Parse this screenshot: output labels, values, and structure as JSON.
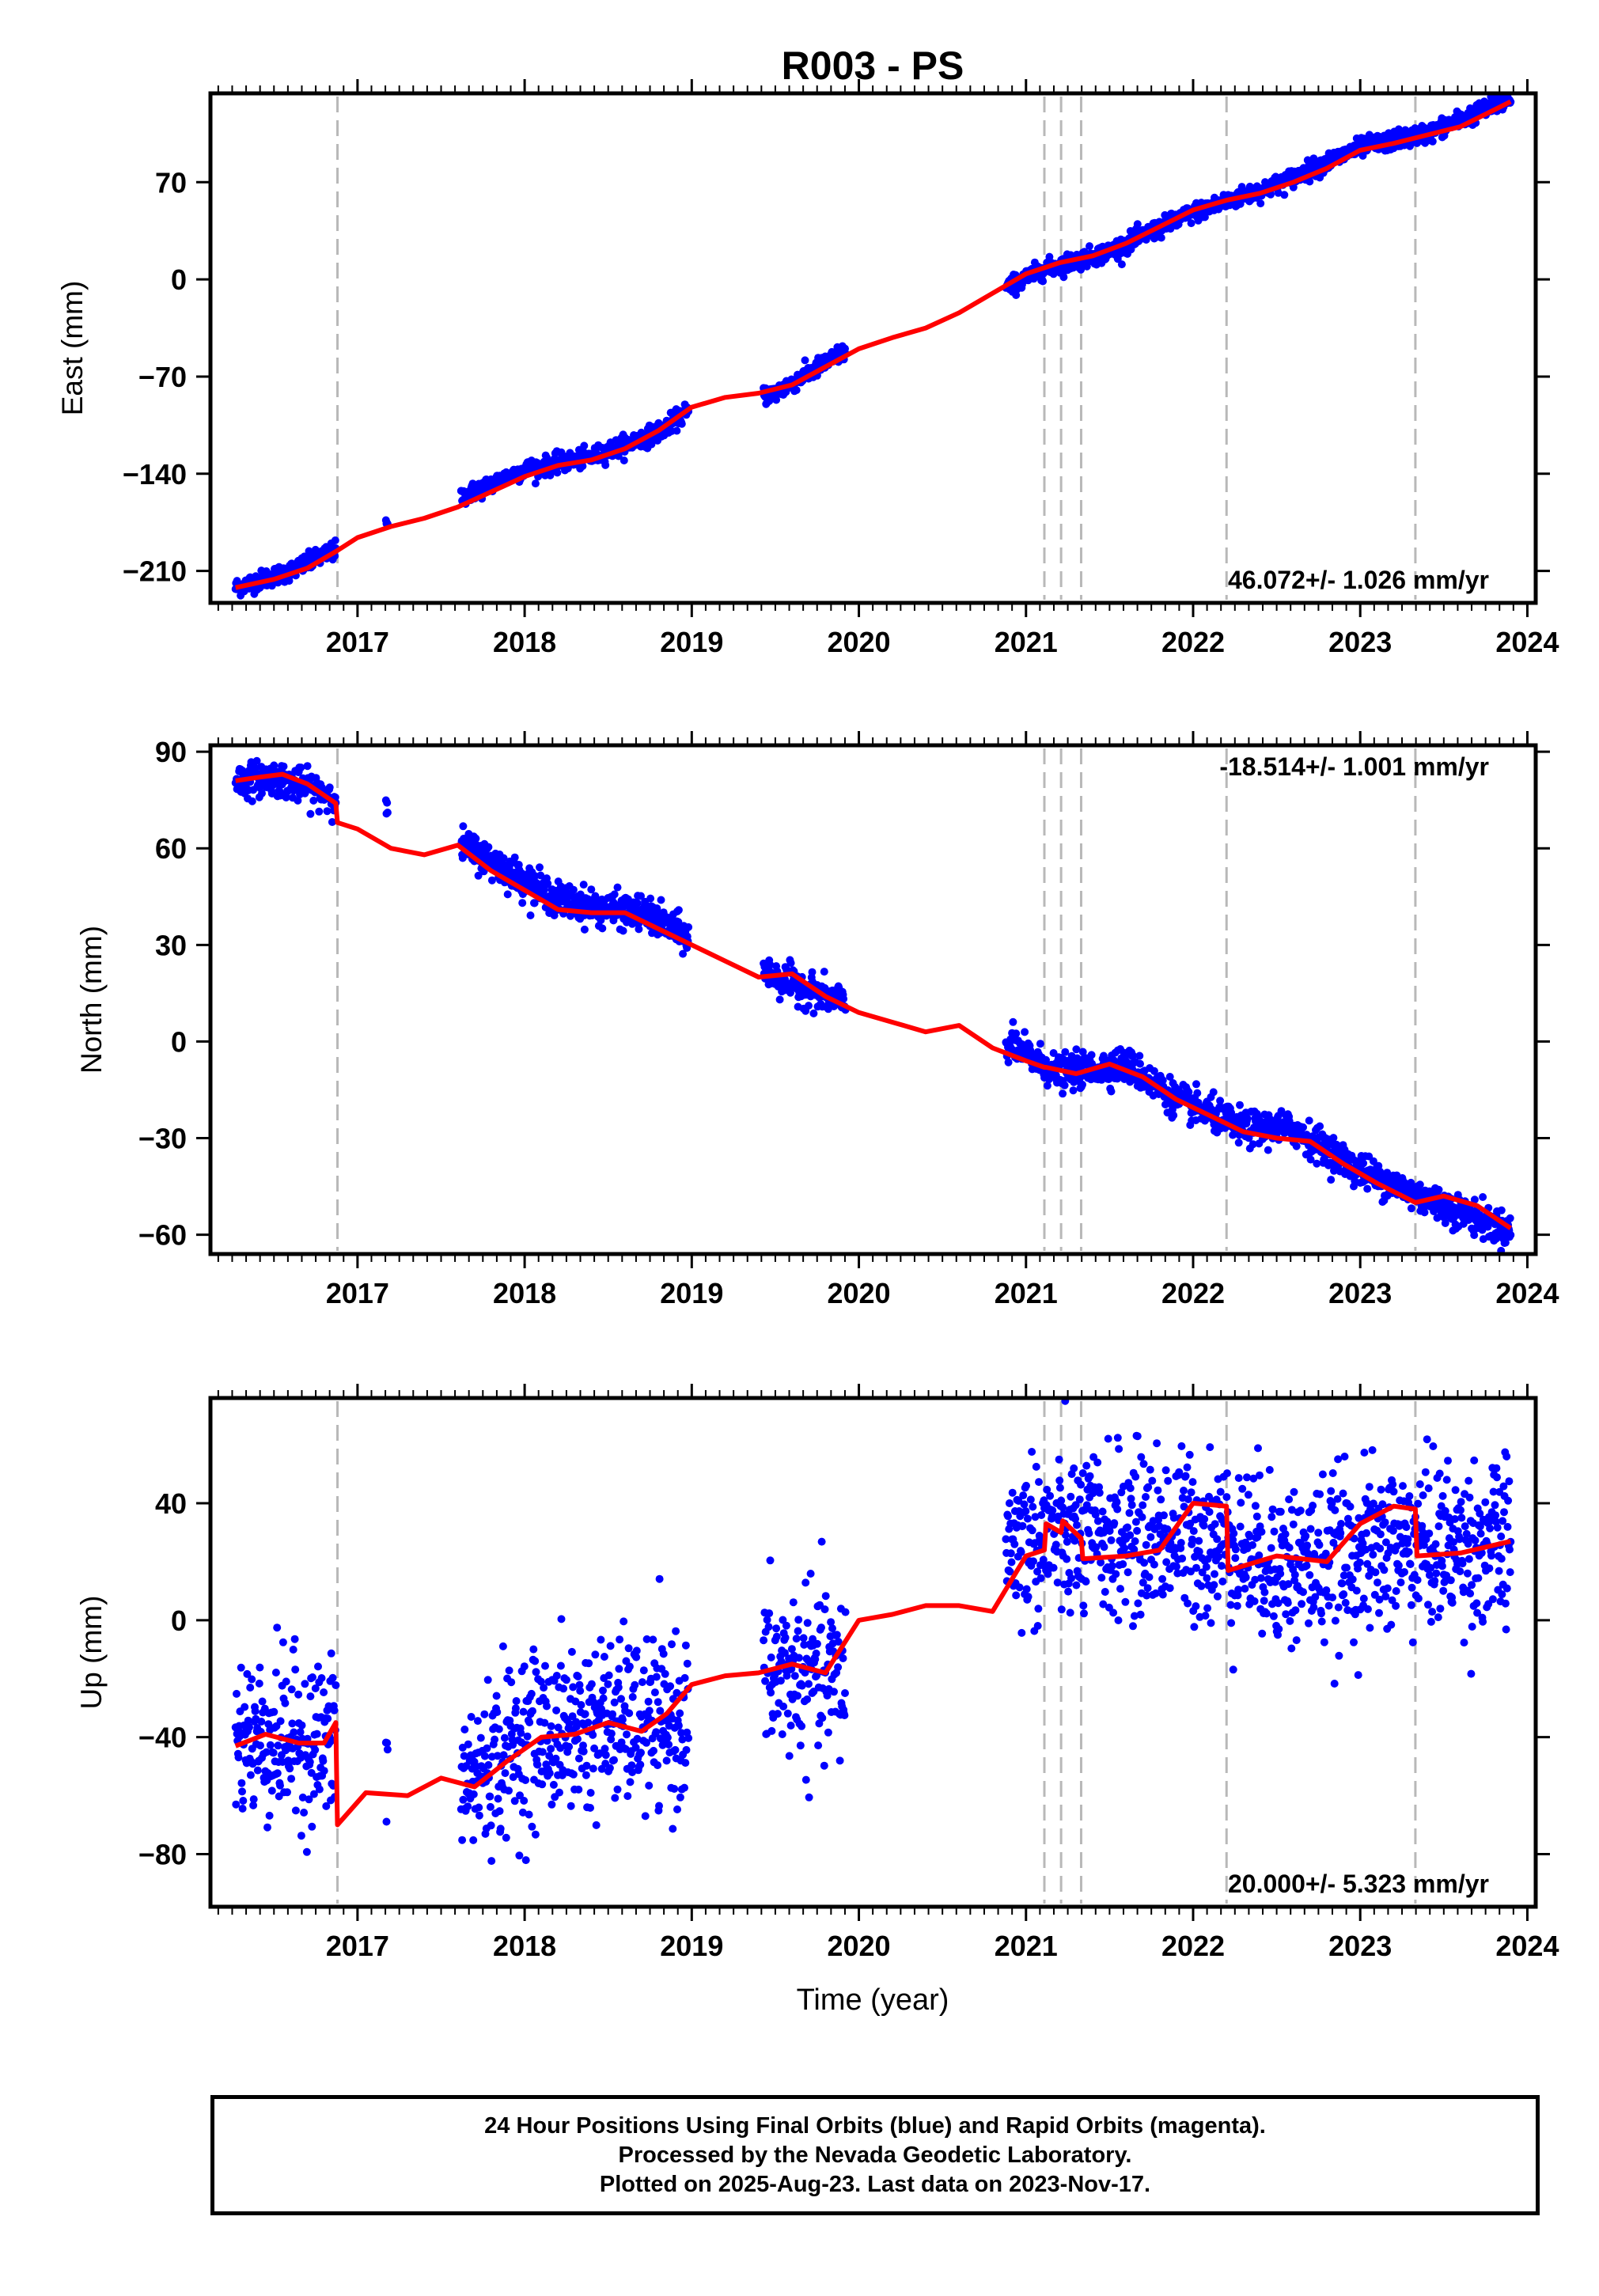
{
  "title": "R003 - PS",
  "colors": {
    "points": "#0000ff",
    "model": "#ff0000",
    "event_lines": "#b8b8b8",
    "frame": "#000000"
  },
  "chart_data": [
    {
      "type": "scatter",
      "component": "East",
      "ylabel": "East (mm)",
      "xlabel": "",
      "xlim": [
        2016.12,
        2024.05
      ],
      "ylim": [
        -233,
        134
      ],
      "yticks": [
        -210,
        -140,
        -70,
        0,
        70
      ],
      "yticklabels": [
        "−210",
        "−140",
        "−70",
        "0",
        "70"
      ],
      "xticks": [
        2017,
        2018,
        2019,
        2020,
        2021,
        2022,
        2023,
        2024
      ],
      "xticklabels": [
        "2017",
        "2018",
        "2019",
        "2020",
        "2021",
        "2022",
        "2023",
        "2024"
      ],
      "rate_label": "46.072+/- 1.026 mm/yr",
      "rate_position": "bottom-right",
      "event_lines": [
        2016.88,
        2021.11,
        2021.21,
        2021.33,
        2022.2,
        2023.33
      ],
      "series": [
        {
          "kind": "points",
          "color": "#0000ff",
          "segments": [
            [
              2016.27,
              2016.87
            ],
            [
              2017.17,
              2017.18
            ],
            [
              2017.62,
              2018.98
            ],
            [
              2019.43,
              2019.92
            ],
            [
              2020.88,
              2023.9
            ]
          ],
          "trend": {
            "x": [
              2016.27,
              2016.6,
              2016.87,
              2017.1,
              2017.6,
              2018.0,
              2018.4,
              2018.8,
              2019.0,
              2019.5,
              2019.9,
              2020.4,
              2020.85,
              2021.1,
              2021.5,
              2022.0,
              2022.5,
              2023.0,
              2023.4,
              2023.9
            ],
            "y": [
              -222,
              -210,
              -195,
              -180,
              -158,
              -137,
              -128,
              -110,
              -93,
              -82,
              -53,
              -40,
              -8,
              7,
              20,
              48,
              68,
              95,
              105,
              130
            ]
          },
          "noise_sd": 3.3
        },
        {
          "kind": "line",
          "color": "#ff0000",
          "x": [
            2016.27,
            2016.5,
            2016.7,
            2016.87,
            2017.0,
            2017.2,
            2017.4,
            2017.6,
            2017.8,
            2018.0,
            2018.2,
            2018.4,
            2018.6,
            2018.8,
            2019.0,
            2019.2,
            2019.4,
            2019.6,
            2019.8,
            2020.0,
            2020.2,
            2020.4,
            2020.6,
            2020.8,
            2021.0,
            2021.2,
            2021.4,
            2021.6,
            2021.8,
            2022.0,
            2022.2,
            2022.4,
            2022.6,
            2022.8,
            2023.0,
            2023.2,
            2023.4,
            2023.6,
            2023.8,
            2023.9
          ],
          "y": [
            -222,
            -216,
            -208,
            -196,
            -186,
            -178,
            -172,
            -164,
            -153,
            -142,
            -134,
            -130,
            -122,
            -109,
            -92,
            -85,
            -82,
            -76,
            -63,
            -50,
            -42,
            -35,
            -24,
            -10,
            4,
            12,
            17,
            26,
            38,
            50,
            57,
            62,
            70,
            80,
            93,
            98,
            104,
            110,
            122,
            128
          ]
        }
      ]
    },
    {
      "type": "scatter",
      "component": "North",
      "ylabel": "North (mm)",
      "xlabel": "",
      "xlim": [
        2016.12,
        2024.05
      ],
      "ylim": [
        -66,
        92
      ],
      "yticks": [
        -60,
        -30,
        0,
        30,
        60,
        90
      ],
      "yticklabels": [
        "−60",
        "−30",
        "0",
        "30",
        "60",
        "90"
      ],
      "xticks": [
        2017,
        2018,
        2019,
        2020,
        2021,
        2022,
        2023,
        2024
      ],
      "xticklabels": [
        "2017",
        "2018",
        "2019",
        "2020",
        "2021",
        "2022",
        "2023",
        "2024"
      ],
      "rate_label": "-18.514+/- 1.001 mm/yr",
      "rate_position": "top-right",
      "event_lines": [
        2016.88,
        2021.11,
        2021.21,
        2021.33,
        2022.2,
        2023.33
      ],
      "series": [
        {
          "kind": "points",
          "color": "#0000ff",
          "segments": [
            [
              2016.27,
              2016.87
            ],
            [
              2017.17,
              2017.18
            ],
            [
              2017.62,
              2018.98
            ],
            [
              2019.43,
              2019.92
            ],
            [
              2020.88,
              2023.9
            ]
          ],
          "trend": {
            "x": [
              2016.27,
              2016.5,
              2016.87,
              2017.6,
              2017.9,
              2018.2,
              2018.5,
              2018.7,
              2019.0,
              2019.5,
              2019.9,
              2020.9,
              2021.2,
              2021.6,
              2021.9,
              2022.3,
              2022.6,
              2023.0,
              2023.4,
              2023.9
            ],
            "y": [
              81,
              82,
              76,
              62,
              53,
              44,
              41,
              40,
              32,
              20,
              12,
              -1,
              -10,
              -7,
              -18,
              -27,
              -27,
              -40,
              -49,
              -59
            ]
          },
          "noise_sd": 2.6
        },
        {
          "kind": "line",
          "color": "#ff0000",
          "x": [
            2016.27,
            2016.4,
            2016.55,
            2016.7,
            2016.87,
            2016.88,
            2017.0,
            2017.2,
            2017.4,
            2017.6,
            2017.8,
            2018.0,
            2018.2,
            2018.4,
            2018.6,
            2018.8,
            2019.0,
            2019.2,
            2019.4,
            2019.6,
            2019.8,
            2020.0,
            2020.2,
            2020.4,
            2020.6,
            2020.8,
            2021.0,
            2021.11,
            2021.12,
            2021.3,
            2021.5,
            2021.7,
            2021.9,
            2022.1,
            2022.3,
            2022.5,
            2022.7,
            2022.9,
            2023.1,
            2023.33,
            2023.5,
            2023.7,
            2023.9
          ],
          "y": [
            81,
            82,
            83,
            80,
            74,
            68,
            66,
            60,
            58,
            61,
            53,
            47,
            41,
            40,
            40,
            35,
            30,
            25,
            20,
            21,
            14,
            9,
            6,
            3,
            5,
            -2,
            -6,
            -8,
            -8,
            -10,
            -7,
            -11,
            -18,
            -23,
            -28,
            -30,
            -31,
            -38,
            -44,
            -50,
            -48,
            -51,
            -58
          ]
        }
      ]
    },
    {
      "type": "scatter",
      "component": "Up",
      "ylabel": "Up (mm)",
      "xlabel": "Time (year)",
      "xlim": [
        2016.12,
        2024.05
      ],
      "ylim": [
        -98,
        76
      ],
      "yticks": [
        -80,
        -40,
        0,
        40
      ],
      "yticklabels": [
        "−80",
        "−40",
        "0",
        "40"
      ],
      "xticks": [
        2017,
        2018,
        2019,
        2020,
        2021,
        2022,
        2023,
        2024
      ],
      "xticklabels": [
        "2017",
        "2018",
        "2019",
        "2020",
        "2021",
        "2022",
        "2023",
        "2024"
      ],
      "rate_label": "20.000+/- 5.323 mm/yr",
      "rate_position": "bottom-right",
      "event_lines": [
        2016.88,
        2021.11,
        2021.21,
        2021.33,
        2022.2,
        2023.33
      ],
      "series": [
        {
          "kind": "points",
          "color": "#0000ff",
          "segments": [
            [
              2016.27,
              2016.87
            ],
            [
              2017.17,
              2017.18
            ],
            [
              2017.62,
              2018.98
            ],
            [
              2019.43,
              2019.92
            ],
            [
              2020.88,
              2023.9
            ]
          ],
          "trend": {
            "x": [
              2016.27,
              2016.87,
              2017.6,
              2018.0,
              2018.5,
              2018.9,
              2019.5,
              2019.9,
              2020.9,
              2021.3,
              2021.8,
              2022.2,
              2022.6,
              2023.3,
              2023.9
            ],
            "y": [
              -40,
              -42,
              -58,
              -40,
              -35,
              -36,
              -18,
              -20,
              28,
              28,
              30,
              27,
              18,
              26,
              25
            ]
          },
          "noise_sd": 14
        },
        {
          "kind": "line",
          "color": "#ff0000",
          "x": [
            2016.27,
            2016.45,
            2016.65,
            2016.8,
            2016.87,
            2016.88,
            2017.05,
            2017.3,
            2017.5,
            2017.7,
            2017.9,
            2018.1,
            2018.3,
            2018.5,
            2018.7,
            2018.85,
            2019.0,
            2019.2,
            2019.4,
            2019.6,
            2019.8,
            2020.0,
            2020.2,
            2020.4,
            2020.6,
            2020.8,
            2021.0,
            2021.11,
            2021.12,
            2021.21,
            2021.22,
            2021.33,
            2021.34,
            2021.6,
            2021.8,
            2022.0,
            2022.2,
            2022.21,
            2022.5,
            2022.8,
            2023.0,
            2023.2,
            2023.33,
            2023.34,
            2023.6,
            2023.9
          ],
          "y": [
            -43,
            -39,
            -42,
            -42,
            -35,
            -70,
            -59,
            -60,
            -54,
            -57,
            -48,
            -40,
            -39,
            -35,
            -38,
            -32,
            -22,
            -19,
            -18,
            -15,
            -18,
            0,
            2,
            5,
            5,
            3,
            22,
            24,
            33,
            30,
            34,
            28,
            21,
            22,
            24,
            40,
            39,
            17,
            22,
            20,
            33,
            39,
            38,
            22,
            23,
            27
          ]
        }
      ]
    }
  ],
  "footer": {
    "line1": "24 Hour Positions Using Final Orbits (blue) and Rapid Orbits (magenta).",
    "line2": "Processed by the Nevada Geodetic Laboratory.",
    "line3": "Plotted on 2025-Aug-23. Last data on 2023-Nov-17."
  }
}
